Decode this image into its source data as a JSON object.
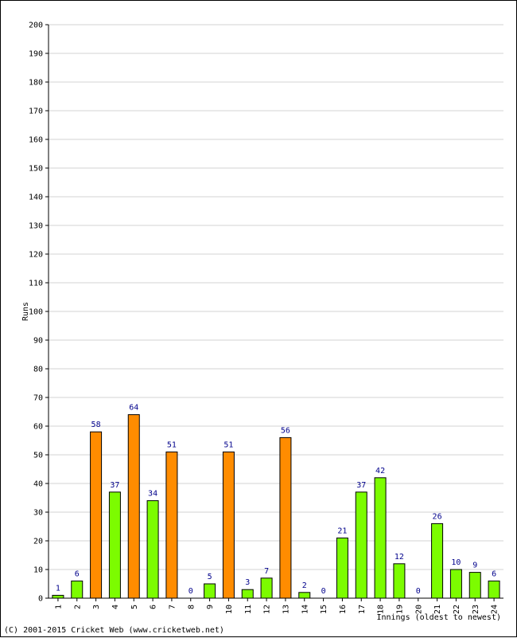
{
  "chart_data": {
    "type": "bar",
    "categories": [
      "1",
      "2",
      "3",
      "4",
      "5",
      "6",
      "7",
      "8",
      "9",
      "10",
      "11",
      "12",
      "13",
      "14",
      "15",
      "16",
      "17",
      "18",
      "19",
      "20",
      "21",
      "22",
      "23",
      "24"
    ],
    "values": [
      1,
      6,
      58,
      37,
      64,
      34,
      51,
      0,
      5,
      51,
      3,
      7,
      56,
      2,
      0,
      21,
      37,
      42,
      12,
      0,
      26,
      10,
      9,
      6
    ],
    "bar_colors": [
      "#7cfc00",
      "#7cfc00",
      "#ff8c00",
      "#7cfc00",
      "#ff8c00",
      "#7cfc00",
      "#ff8c00",
      "#7cfc00",
      "#7cfc00",
      "#ff8c00",
      "#7cfc00",
      "#7cfc00",
      "#ff8c00",
      "#7cfc00",
      "#7cfc00",
      "#7cfc00",
      "#7cfc00",
      "#7cfc00",
      "#7cfc00",
      "#7cfc00",
      "#7cfc00",
      "#7cfc00",
      "#7cfc00",
      "#7cfc00"
    ],
    "ylabel": "Runs",
    "xlabel": "Innings (oldest to newest)",
    "ylim": [
      0,
      200
    ],
    "ytick_step": 10,
    "grid": true,
    "colors": {
      "green": "#7cfc00",
      "orange": "#ff8c00",
      "label": "#00008b",
      "grid": "#d3d3d3"
    }
  },
  "footer": "(C) 2001-2015 Cricket Web (www.cricketweb.net)"
}
